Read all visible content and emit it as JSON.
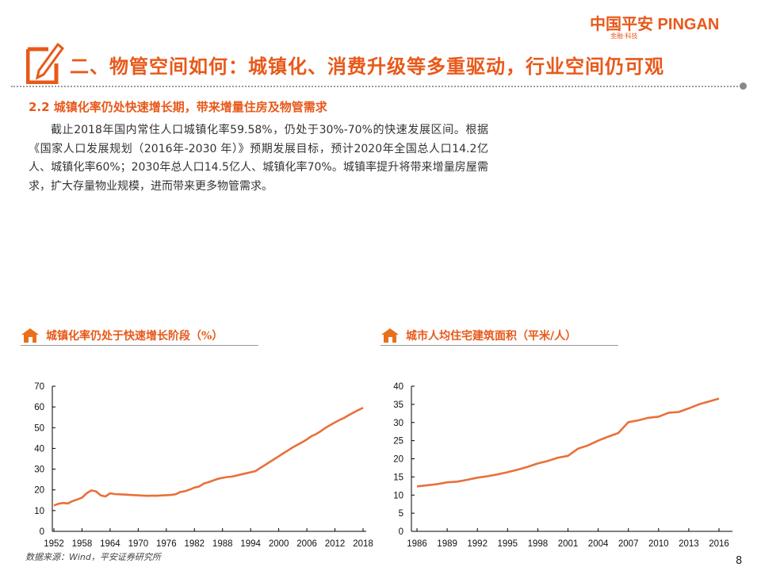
{
  "brand": {
    "logo_text": "中国平安 PINGAN",
    "logo_sub": "金融·科技",
    "accent": "#e8591a"
  },
  "header": {
    "title": "二、物管空间如何：城镇化、消费升级等多重驱动，行业空间仍可观"
  },
  "section": {
    "subtitle": "2.2  城镇化率仍处快速增长期，带来增量住房及物管需求",
    "body": "截止2018年国内常住人口城镇化率59.58%，仍处于30%-70%的快速发展区间。根据《国家人口发展规划（2016年-2030 年）》预期发展目标，预计2020年全国总人口14.2亿人、城镇化率60%；2030年总人口14.5亿人、城镇化率70%。城镇率提升将带来增量房屋需求，扩大存量物业规模，进而带来更多物管需求。"
  },
  "chart_data": [
    {
      "type": "line",
      "title": "城镇化率仍处于快速增长阶段（%）",
      "ylim": [
        0,
        70
      ],
      "yticks": [
        0,
        10,
        20,
        30,
        40,
        50,
        60,
        70
      ],
      "xticks": [
        "1952",
        "1958",
        "1964",
        "1970",
        "1976",
        "1982",
        "1988",
        "1994",
        "2000",
        "2006",
        "2012",
        "2018"
      ],
      "x_start": 1952,
      "values": [
        12.46,
        13.31,
        13.69,
        13.48,
        14.62,
        15.39,
        16.25,
        18.41,
        19.75,
        19.29,
        17.33,
        16.84,
        18.37,
        17.98,
        17.86,
        17.74,
        17.62,
        17.5,
        17.38,
        17.26,
        17.13,
        17.2,
        17.16,
        17.34,
        17.44,
        17.55,
        17.92,
        18.96,
        19.39,
        20.16,
        21.13,
        21.62,
        23.01,
        23.71,
        24.52,
        25.32,
        25.81,
        26.21,
        26.41,
        26.94,
        27.46,
        27.99,
        28.51,
        29.04,
        30.48,
        31.91,
        33.35,
        34.78,
        36.22,
        37.66,
        39.09,
        40.53,
        41.76,
        42.99,
        44.34,
        45.89,
        46.99,
        48.34,
        49.95,
        51.27,
        52.57,
        53.73,
        54.77,
        56.1,
        57.35,
        58.52,
        59.58
      ],
      "color": "#e8703a"
    },
    {
      "type": "line",
      "title": "城市人均住宅建筑面积（平米/人）",
      "ylim": [
        0,
        40
      ],
      "yticks": [
        0,
        5,
        10,
        15,
        20,
        25,
        30,
        35,
        40
      ],
      "xticks": [
        "1986",
        "1989",
        "1992",
        "1995",
        "1998",
        "2001",
        "2004",
        "2007",
        "2010",
        "2013",
        "2016"
      ],
      "x_start": 1986,
      "values": [
        12.4,
        12.7,
        13.0,
        13.5,
        13.7,
        14.2,
        14.8,
        15.2,
        15.7,
        16.3,
        17.0,
        17.8,
        18.7,
        19.4,
        20.3,
        20.8,
        22.8,
        23.7,
        25.0,
        26.1,
        27.1,
        30.1,
        30.6,
        31.3,
        31.6,
        32.7,
        32.9,
        33.9,
        35.0,
        35.8,
        36.6
      ],
      "color": "#e8703a"
    }
  ],
  "footer": {
    "source": "数据来源：Wind，平安证券研究所",
    "page": "8"
  }
}
